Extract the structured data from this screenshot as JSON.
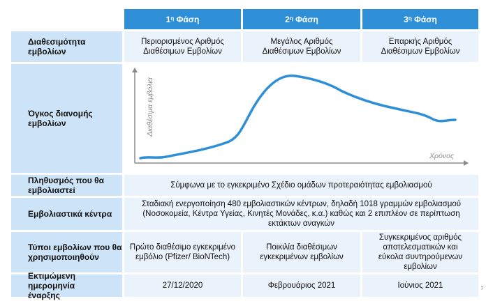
{
  "phases": [
    {
      "num": "1",
      "sup": "η",
      "word": "Φάση"
    },
    {
      "num": "2",
      "sup": "η",
      "word": "Φάση"
    },
    {
      "num": "3",
      "sup": "η",
      "word": "Φάση"
    }
  ],
  "rows": {
    "availability": {
      "label": "Διαθεσιμότητα εμβολίων",
      "values": [
        [
          "Περιορισμένος Αριθμός",
          "Διαθέσιμων Εμβολίων"
        ],
        [
          "Μεγάλος Αριθμός",
          "Διαθέσιμων Εμβολίων"
        ],
        [
          "Επαρκής Αριθμός",
          "Διαθέσιμων Εμβολίων"
        ]
      ]
    },
    "volume": {
      "label": [
        "Όγκος διανομής",
        "εμβολίων"
      ],
      "y_axis_label": "Διαθέσιμα εμβόλια",
      "x_axis_label": "Χρόνος"
    },
    "population": {
      "label": [
        "Πληθυσμός που θα",
        "εμβολιαστεί"
      ],
      "value": "Σύμφωνα με το εγκεκριμένο Σχέδιο ομάδων προτεραιότητας εμβολιασμού"
    },
    "centers": {
      "label": "Εμβολιαστικά κέντρα",
      "value": [
        "Σταδιακή ενεργοποίηση 480 εμβολιαστικών κέντρων, δηλαδή 1018 γραμμών εμβολιασμού",
        "(Νοσοκομεία, Κέντρα Υγείας, Κινητές Μονάδες, κ.α.) καθώς και 2 επιπλέον σε περίπτωση",
        "εκτάκτων αναγκών"
      ]
    },
    "types": {
      "label": [
        "Τύποι εμβολίων που θα",
        "χρησιμοποιηθούν"
      ],
      "values": [
        [
          "Πρώτο διαθέσιμο εγκεκριμένο",
          "εμβόλιο (Pfizer/ BioNTech)"
        ],
        [
          "Ποικιλία διαθέσιμων",
          "εγκεκριμένων εμβολίων"
        ],
        [
          "Συγκεκριμένος αριθμός",
          "αποτελεσματικών και",
          "εύκολα συντηρούμενων",
          "εμβολίων"
        ]
      ]
    },
    "start": {
      "label": [
        "Εκτιμώμενη ημερομηνία",
        "έναρξης"
      ],
      "values": [
        "27/12/2020",
        "Φεβρουάριος 2021",
        "Ιούνιος 2021"
      ]
    }
  },
  "page_number": "7",
  "colors": {
    "header": "#2e8fd6",
    "label_bg": "#cde3f7",
    "value_bg": "#eaf2fb",
    "curve": "#2e8fd6"
  }
}
